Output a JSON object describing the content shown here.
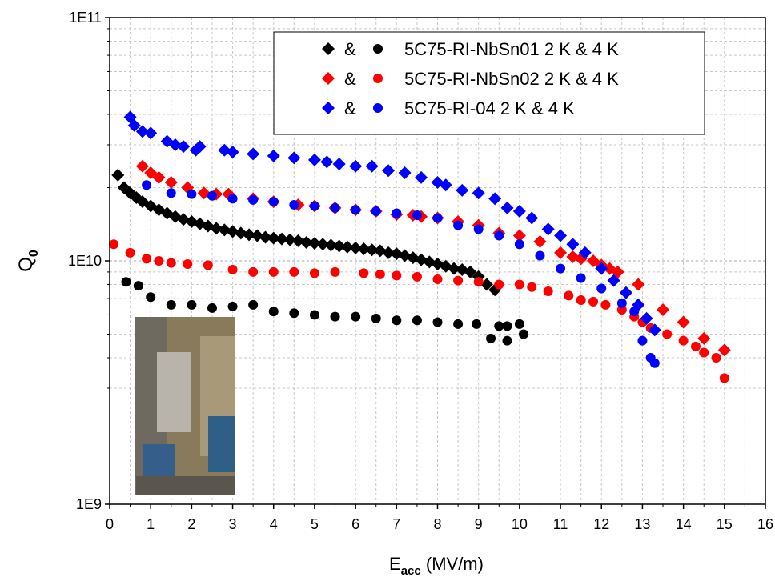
{
  "chart_data": {
    "type": "scatter",
    "xlabel": {
      "main": "E",
      "sub": "acc",
      "unit": " (MV/m)"
    },
    "ylabel": {
      "main": "Q",
      "sub": "0"
    },
    "xlim": [
      0,
      16
    ],
    "xticks": [
      0,
      1,
      2,
      3,
      4,
      5,
      6,
      7,
      8,
      9,
      10,
      11,
      12,
      13,
      14,
      15,
      16
    ],
    "ylim": [
      1000000000.0,
      100000000000.0
    ],
    "ylog": true,
    "yticks": [
      {
        "value": 1000000000.0,
        "label": "1E9"
      },
      {
        "value": 10000000000.0,
        "label": "1E10"
      },
      {
        "value": 100000000000.0,
        "label": "1E11"
      }
    ],
    "grid": true,
    "legend_position": "upper right",
    "legend_separator": "&",
    "series": [
      {
        "name": "5C75-RI-NbSn01 2 K & 4 K",
        "color": "#000000",
        "marker": "diamond",
        "x": [
          0.2,
          0.35,
          0.5,
          0.65,
          0.8,
          1.0,
          1.2,
          1.4,
          1.6,
          1.8,
          2.0,
          2.2,
          2.4,
          2.6,
          2.8,
          3.0,
          3.2,
          3.4,
          3.6,
          3.8,
          4.0,
          4.2,
          4.4,
          4.6,
          4.8,
          5.0,
          5.2,
          5.4,
          5.6,
          5.8,
          6.0,
          6.2,
          6.4,
          6.6,
          6.8,
          7.0,
          7.2,
          7.4,
          7.6,
          7.8,
          8.0,
          8.2,
          8.4,
          8.6,
          8.8,
          9.0,
          9.2,
          9.4
        ],
        "values": [
          22500000000.0,
          20000000000.0,
          19000000000.0,
          18200000000.0,
          17500000000.0,
          16800000000.0,
          16200000000.0,
          15700000000.0,
          15200000000.0,
          14800000000.0,
          14500000000.0,
          14200000000.0,
          13900000000.0,
          13600000000.0,
          13400000000.0,
          13200000000.0,
          13000000000.0,
          12800000000.0,
          12700000000.0,
          12500000000.0,
          12400000000.0,
          12300000000.0,
          12200000000.0,
          12100000000.0,
          11900000000.0,
          11800000000.0,
          11700000000.0,
          11600000000.0,
          11500000000.0,
          11400000000.0,
          11300000000.0,
          11200000000.0,
          11100000000.0,
          11000000000.0,
          10800000000.0,
          10700000000.0,
          10500000000.0,
          10300000000.0,
          10100000000.0,
          9900000000.0,
          9700000000.0,
          9500000000.0,
          9300000000.0,
          9200000000.0,
          9000000000.0,
          8600000000.0,
          8000000000.0,
          7600000000.0
        ]
      },
      {
        "color": "#000000",
        "marker": "circle",
        "x": [
          0.4,
          0.7,
          1.0,
          1.5,
          2.0,
          2.5,
          3.0,
          3.5,
          4.0,
          4.5,
          5.0,
          5.5,
          6.0,
          6.5,
          7.0,
          7.5,
          8.0,
          8.5,
          8.95,
          9.3,
          9.5,
          9.7,
          9.7,
          10.0,
          10.1
        ],
        "values": [
          8200000000.0,
          7900000000.0,
          7100000000.0,
          6600000000.0,
          6600000000.0,
          6400000000.0,
          6500000000.0,
          6600000000.0,
          6200000000.0,
          6100000000.0,
          6000000000.0,
          5900000000.0,
          5900000000.0,
          5800000000.0,
          5700000000.0,
          5700000000.0,
          5600000000.0,
          5500000000.0,
          5500000000.0,
          4800000000.0,
          5400000000.0,
          4700000000.0,
          5400000000.0,
          5500000000.0,
          5000000000.0
        ]
      },
      {
        "name": "5C75-RI-NbSn02 2 K & 4 K",
        "color": "#ff0000",
        "marker": "diamond",
        "x": [
          0.8,
          1.0,
          1.2,
          1.5,
          1.9,
          2.3,
          2.6,
          2.9,
          3.5,
          4.0,
          4.6,
          5.0,
          5.5,
          6.0,
          6.5,
          7.0,
          7.4,
          7.6,
          8.0,
          8.5,
          9.0,
          9.5,
          10.0,
          10.5,
          11.0,
          11.3,
          11.5,
          11.8,
          12.0,
          12.2,
          12.4,
          12.9,
          13.5,
          14.0,
          14.5,
          15.0
        ],
        "values": [
          24500000000.0,
          23000000000.0,
          22000000000.0,
          21000000000.0,
          20000000000.0,
          19000000000.0,
          18800000000.0,
          18800000000.0,
          18000000000.0,
          17500000000.0,
          17000000000.0,
          16800000000.0,
          16500000000.0,
          16200000000.0,
          16000000000.0,
          15500000000.0,
          15400000000.0,
          15200000000.0,
          15000000000.0,
          14500000000.0,
          14000000000.0,
          13000000000.0,
          12700000000.0,
          12000000000.0,
          10800000000.0,
          10400000000.0,
          10200000000.0,
          10000000000.0,
          9600000000.0,
          9300000000.0,
          9000000000.0,
          8000000000.0,
          6300000000.0,
          5600000000.0,
          4800000000.0,
          4300000000.0
        ]
      },
      {
        "color": "#ff0000",
        "marker": "circle",
        "x": [
          0.1,
          0.5,
          0.9,
          1.2,
          1.5,
          1.9,
          2.4,
          3.0,
          3.5,
          4.0,
          4.5,
          5.0,
          5.5,
          6.2,
          6.6,
          7.0,
          7.5,
          8.0,
          8.5,
          9.0,
          9.5,
          10.0,
          10.3,
          10.7,
          11.2,
          11.5,
          11.8,
          12.1,
          12.5,
          12.8,
          13.0,
          13.2,
          13.6,
          14.0,
          14.3,
          14.5,
          14.8,
          15.0
        ],
        "values": [
          11700000000.0,
          10800000000.0,
          10200000000.0,
          10000000000.0,
          9800000000.0,
          9700000000.0,
          9600000000.0,
          9200000000.0,
          9000000000.0,
          9000000000.0,
          9000000000.0,
          8900000000.0,
          9000000000.0,
          8900000000.0,
          8800000000.0,
          8700000000.0,
          8600000000.0,
          8400000000.0,
          8300000000.0,
          8200000000.0,
          8000000000.0,
          8000000000.0,
          7800000000.0,
          7500000000.0,
          7200000000.0,
          6900000000.0,
          6800000000.0,
          6600000000.0,
          6300000000.0,
          5900000000.0,
          5600000000.0,
          5300000000.0,
          5000000000.0,
          4700000000.0,
          4450000000.0,
          4200000000.0,
          4000000000.0,
          3300000000.0
        ]
      },
      {
        "name": "5C75-RI-04 2 K & 4 K",
        "color": "#0000ff",
        "marker": "diamond",
        "x": [
          0.5,
          0.6,
          0.8,
          1.0,
          1.4,
          1.6,
          1.8,
          2.1,
          2.2,
          2.8,
          3.0,
          3.5,
          4.0,
          4.5,
          5.0,
          5.3,
          5.6,
          6.0,
          6.4,
          6.8,
          7.2,
          7.6,
          8.0,
          8.2,
          8.6,
          9.0,
          9.4,
          9.7,
          10.0,
          10.3,
          10.7,
          11.0,
          11.3,
          11.6,
          12.0,
          12.3,
          12.6,
          12.9,
          13.1,
          13.3
        ],
        "values": [
          39000000000.0,
          36000000000.0,
          34000000000.0,
          33500000000.0,
          31000000000.0,
          30000000000.0,
          29500000000.0,
          28500000000.0,
          29500000000.0,
          28500000000.0,
          28000000000.0,
          27500000000.0,
          27000000000.0,
          26500000000.0,
          26000000000.0,
          25500000000.0,
          25000000000.0,
          24500000000.0,
          24500000000.0,
          23500000000.0,
          23000000000.0,
          22000000000.0,
          21000000000.0,
          20500000000.0,
          19500000000.0,
          19000000000.0,
          18000000000.0,
          16500000000.0,
          16000000000.0,
          15000000000.0,
          13500000000.0,
          12700000000.0,
          11700000000.0,
          10800000000.0,
          9300000000.0,
          8300000000.0,
          7400000000.0,
          6600000000.0,
          5800000000.0,
          5200000000.0
        ]
      },
      {
        "color": "#0000ff",
        "marker": "circle",
        "x": [
          0.9,
          1.5,
          2.0,
          2.5,
          3.0,
          3.5,
          4.0,
          4.5,
          5.0,
          5.5,
          6.0,
          6.5,
          7.0,
          7.5,
          8.0,
          8.5,
          9.0,
          9.5,
          10.0,
          10.5,
          11.0,
          11.5,
          12.0,
          12.5,
          12.8,
          13.0,
          13.2,
          13.3
        ],
        "values": [
          20500000000.0,
          19000000000.0,
          18800000000.0,
          18500000000.0,
          18000000000.0,
          17800000000.0,
          17500000000.0,
          17000000000.0,
          16800000000.0,
          16500000000.0,
          16200000000.0,
          16000000000.0,
          15700000000.0,
          15400000000.0,
          15000000000.0,
          14000000000.0,
          13500000000.0,
          12700000000.0,
          11700000000.0,
          10500000000.0,
          9300000000.0,
          8500000000.0,
          7700000000.0,
          6700000000.0,
          6200000000.0,
          4700000000.0,
          4000000000.0,
          3800000000.0
        ]
      }
    ]
  }
}
